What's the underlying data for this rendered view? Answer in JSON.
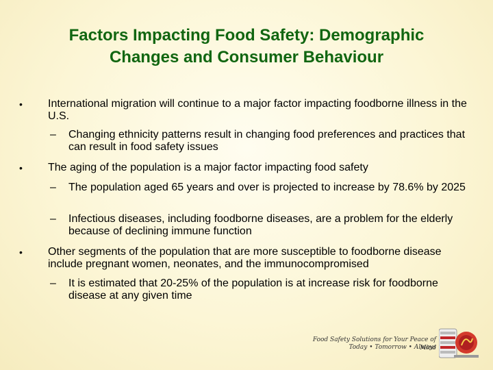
{
  "title": {
    "line1": "Factors Impacting Food Safety: Demographic",
    "line2": "Changes and Consumer Behaviour"
  },
  "bullets": [
    {
      "text": "International  migration will continue to a major factor impacting foodborne illness in the U.S.",
      "subs": [
        "Changing ethnicity patterns result in changing food preferences and practices that can result in food safety issues"
      ]
    },
    {
      "text": "The aging of the population is a major factor impacting food safety",
      "subs": [
        "The population aged 65 years and over is projected to increase by 78.6% by 2025",
        "Infectious diseases, including foodborne diseases, are a problem for the elderly because of declining immune function"
      ]
    },
    {
      "text": "Other segments of the population that are more susceptible to foodborne disease include pregnant women, neonates, and the immunocompromised",
      "subs": [
        "It is estimated that 20-25% of the population is at increase risk for foodborne disease at any given time"
      ]
    }
  ],
  "markers": {
    "bullet": "•",
    "dash": "–"
  },
  "logo": {
    "tagline": "Food Safety Solutions for Your Peace of Mind",
    "subline": "Today • Tomorrow • Always"
  },
  "colors": {
    "title": "#116611",
    "background": "#fcf6d6",
    "logo_red": "#c0282a"
  }
}
